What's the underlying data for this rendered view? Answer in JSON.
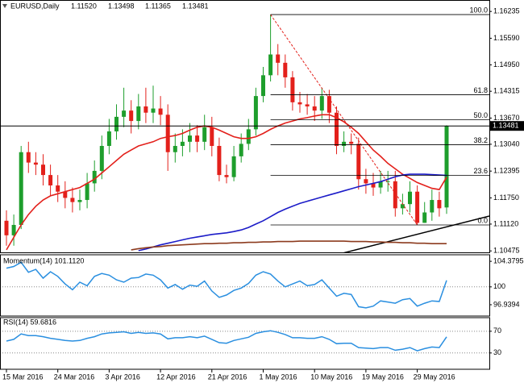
{
  "chart_data": [
    {
      "type": "candlestick",
      "symbol": "EURUSD,Daily",
      "ohlc_labels": [
        "1.11520",
        "1.13498",
        "1.11365",
        "1.13481"
      ],
      "categories": [
        "15 Mar 2016",
        null,
        null,
        null,
        null,
        null,
        null,
        "24 Mar 2016",
        null,
        null,
        null,
        null,
        null,
        null,
        "3 Apr 2016",
        null,
        null,
        null,
        null,
        null,
        null,
        "12 Apr 2016",
        null,
        null,
        null,
        null,
        null,
        null,
        "21 Apr 2016",
        null,
        null,
        null,
        null,
        null,
        null,
        "1 May 2016",
        null,
        null,
        null,
        null,
        null,
        null,
        "10 May 2016",
        null,
        null,
        null,
        null,
        null,
        null,
        "19 May 2016",
        null,
        null,
        null,
        null,
        null,
        null,
        "29 May 2016",
        null,
        null,
        null,
        null
      ],
      "open": [
        1.112,
        1.1085,
        1.111,
        1.1285,
        1.126,
        1.1255,
        1.123,
        1.1205,
        1.119,
        1.1175,
        1.1165,
        1.117,
        1.121,
        1.124,
        1.13,
        1.1335,
        1.137,
        1.1385,
        1.136,
        1.1395,
        1.138,
        1.139,
        1.1375,
        1.1285,
        1.13,
        1.131,
        1.1325,
        1.131,
        1.1345,
        1.13,
        1.123,
        1.1225,
        1.1275,
        1.1305,
        1.134,
        1.142,
        1.147,
        1.152,
        1.15,
        1.1465,
        1.1405,
        1.14,
        1.1395,
        1.1385,
        1.142,
        1.138,
        1.13,
        1.131,
        1.1305,
        1.122,
        1.121,
        1.12,
        1.1215,
        1.1215,
        1.115,
        1.116,
        1.119,
        1.1115,
        1.114,
        1.117,
        1.1152
      ],
      "high": [
        1.1145,
        1.1135,
        1.13,
        1.131,
        1.1285,
        1.128,
        1.1255,
        1.123,
        1.1215,
        1.12,
        1.1195,
        1.1235,
        1.1265,
        1.1325,
        1.1365,
        1.14,
        1.144,
        1.141,
        1.1425,
        1.144,
        1.1445,
        1.142,
        1.14,
        1.133,
        1.134,
        1.1355,
        1.135,
        1.1375,
        1.137,
        1.132,
        1.1255,
        1.13,
        1.133,
        1.1365,
        1.144,
        1.149,
        1.1616,
        1.1545,
        1.152,
        1.148,
        1.143,
        1.1425,
        1.142,
        1.144,
        1.1435,
        1.1395,
        1.1335,
        1.133,
        1.132,
        1.1245,
        1.1235,
        1.124,
        1.124,
        1.124,
        1.1185,
        1.1215,
        1.1205,
        1.1165,
        1.1195,
        1.119,
        1.13498
      ],
      "low": [
        1.106,
        1.106,
        1.11,
        1.1235,
        1.123,
        1.1205,
        1.118,
        1.1165,
        1.115,
        1.114,
        1.1145,
        1.115,
        1.119,
        1.122,
        1.128,
        1.1315,
        1.1345,
        1.133,
        1.134,
        1.1355,
        1.1355,
        1.135,
        1.124,
        1.126,
        1.1275,
        1.1285,
        1.1285,
        1.129,
        1.1275,
        1.1215,
        1.121,
        1.1215,
        1.126,
        1.129,
        1.1325,
        1.1405,
        1.1455,
        1.147,
        1.144,
        1.1385,
        1.138,
        1.1375,
        1.136,
        1.1365,
        1.1355,
        1.128,
        1.1285,
        1.128,
        1.1195,
        1.1185,
        1.118,
        1.1185,
        1.119,
        1.113,
        1.1135,
        1.114,
        1.111,
        1.1115,
        1.112,
        1.113,
        1.11365
      ],
      "close": [
        1.1085,
        1.111,
        1.1285,
        1.126,
        1.1255,
        1.123,
        1.1205,
        1.119,
        1.1175,
        1.1165,
        1.117,
        1.121,
        1.124,
        1.13,
        1.1335,
        1.137,
        1.1385,
        1.136,
        1.1395,
        1.138,
        1.139,
        1.1375,
        1.1285,
        1.13,
        1.131,
        1.1325,
        1.131,
        1.1345,
        1.13,
        1.123,
        1.1225,
        1.1275,
        1.1305,
        1.134,
        1.142,
        1.147,
        1.152,
        1.15,
        1.1465,
        1.1405,
        1.14,
        1.1395,
        1.1385,
        1.142,
        1.138,
        1.13,
        1.131,
        1.1305,
        1.122,
        1.121,
        1.12,
        1.1215,
        1.1215,
        1.115,
        1.116,
        1.119,
        1.1115,
        1.114,
        1.117,
        1.115,
        1.13481
      ],
      "up_color": "#1e9e2c",
      "down_color": "#e3201b",
      "overlays": [
        {
          "color": "#e3201b",
          "values": [
            1.105,
            1.108,
            1.111,
            1.1135,
            1.1155,
            1.117,
            1.118,
            1.1185,
            1.119,
            1.1195,
            1.12,
            1.121,
            1.122,
            1.1235,
            1.125,
            1.1265,
            1.128,
            1.129,
            1.13,
            1.1305,
            1.131,
            1.1318,
            1.1322,
            1.1325,
            1.133,
            1.1338,
            1.1345,
            1.1348,
            1.1345,
            1.1338,
            1.133,
            1.1322,
            1.1318,
            1.1318,
            1.1322,
            1.133,
            1.134,
            1.1348,
            1.1355,
            1.136,
            1.1365,
            1.1368,
            1.1372,
            1.1375,
            1.1375,
            1.1368,
            1.1358,
            1.1345,
            1.133,
            1.131,
            1.129,
            1.1275,
            1.1258,
            1.1245,
            1.1232,
            1.1222,
            1.1212,
            1.1205,
            1.1198,
            1.1195,
            1.1225
          ]
        },
        {
          "color": "#1c1cc8",
          "values": [
            null,
            null,
            null,
            null,
            null,
            null,
            null,
            null,
            null,
            null,
            null,
            null,
            null,
            null,
            null,
            null,
            null,
            null,
            1.1048,
            1.1052,
            1.1057,
            1.1062,
            1.1066,
            1.107,
            1.1074,
            1.1078,
            1.1081,
            1.1084,
            1.1087,
            1.1089,
            1.1091,
            1.1094,
            1.1098,
            1.1104,
            1.1112,
            1.112,
            1.113,
            1.114,
            1.1148,
            1.1155,
            1.1162,
            1.1167,
            1.1172,
            1.1177,
            1.1182,
            1.1187,
            1.1192,
            1.1197,
            1.1202,
            1.1206,
            1.121,
            1.1214,
            1.122,
            1.1226,
            1.123,
            1.1232,
            1.1232,
            1.1232,
            1.1231,
            1.123,
            1.1229
          ]
        },
        {
          "color": "#8c3b1e",
          "values": [
            null,
            null,
            null,
            null,
            null,
            null,
            null,
            null,
            null,
            null,
            null,
            null,
            null,
            null,
            null,
            null,
            null,
            1.105,
            1.1053,
            1.1055,
            1.1057,
            1.1058,
            1.106,
            1.1061,
            1.1062,
            1.1063,
            1.1064,
            1.1065,
            1.1065,
            1.1066,
            1.1066,
            1.1067,
            1.1067,
            1.1068,
            1.1068,
            1.1069,
            1.1069,
            1.107,
            1.107,
            1.107,
            1.1071,
            1.1071,
            1.1071,
            1.1071,
            1.1071,
            1.1071,
            1.1071,
            1.107,
            1.107,
            1.107,
            1.1069,
            1.1069,
            1.1068,
            1.1068,
            1.1067,
            1.1067,
            1.1066,
            1.1066,
            1.1065,
            1.1065,
            1.1065
          ]
        }
      ],
      "fibonacci": {
        "from": 36,
        "to": 56,
        "levels": [
          {
            "label": "100.0",
            "value": 1.1616
          },
          {
            "label": "61.8",
            "value": 1.1423
          },
          {
            "label": "50.0",
            "value": 1.1363
          },
          {
            "label": "38.2",
            "value": 1.1303
          },
          {
            "label": "23.6",
            "value": 1.1229
          },
          {
            "label": "0.0",
            "value": 1.111
          }
        ]
      },
      "last_price": {
        "value": 1.13481,
        "label": "1.13481"
      },
      "ylim": [
        1.1044,
        1.1651
      ],
      "yticks": [
        1.16235,
        {
          "value": 1.1559,
          "label": "1.15590"
        },
        {
          "value": 1.1495,
          "label": "1.14950"
        },
        1.14315,
        {
          "value": 1.1367,
          "label": "1.13670"
        },
        {
          "value": 1.1304,
          "label": "1.13040"
        },
        1.12395,
        {
          "value": 1.1175,
          "label": "1.11750"
        },
        {
          "value": 1.1112,
          "label": "1.11120"
        },
        1.10475
      ]
    },
    {
      "type": "line",
      "title": "Momentum(14) 101.1120",
      "color": "#2a8fe0",
      "values": [
        103.2,
        103.5,
        104.2,
        102.5,
        103.0,
        101.5,
        102.6,
        101.8,
        100.5,
        99.5,
        100.8,
        100.2,
        101.8,
        102.3,
        102.0,
        101.2,
        100.8,
        101.5,
        101.6,
        102.2,
        102.0,
        101.2,
        99.8,
        100.4,
        99.6,
        100.3,
        100.1,
        101.0,
        99.3,
        98.2,
        98.6,
        99.4,
        99.8,
        100.6,
        102.0,
        102.6,
        102.2,
        101.0,
        100.0,
        100.5,
        101.0,
        100.2,
        100.4,
        101.2,
        99.8,
        98.4,
        98.9,
        98.7,
        96.6,
        96.4,
        96.7,
        97.6,
        97.4,
        97.2,
        97.8,
        98.0,
        96.7,
        97.2,
        97.6,
        97.5,
        101.112
      ],
      "ylim": [
        95.0,
        105.5
      ],
      "yticks": [
        104.3795,
        100,
        96.9394
      ],
      "levels": [
        100
      ]
    },
    {
      "type": "line",
      "title": "RSI(14) 59.6816",
      "color": "#2a8fe0",
      "values": [
        52,
        55,
        65,
        62,
        62,
        60,
        57,
        55,
        53,
        52,
        53,
        57,
        60,
        65,
        67,
        68,
        69,
        66,
        68,
        66,
        67,
        65,
        56,
        58,
        58,
        60,
        58,
        61,
        55,
        49,
        48,
        53,
        56,
        59,
        66,
        69,
        71,
        68,
        64,
        58,
        58,
        57,
        57,
        60,
        55,
        47,
        48,
        48,
        40,
        39,
        38,
        40,
        40,
        35,
        37,
        40,
        34,
        38,
        41,
        40,
        59.6816
      ],
      "ylim": [
        0,
        95
      ],
      "yticks": [
        70,
        30
      ],
      "levels": [
        70,
        30
      ]
    }
  ]
}
